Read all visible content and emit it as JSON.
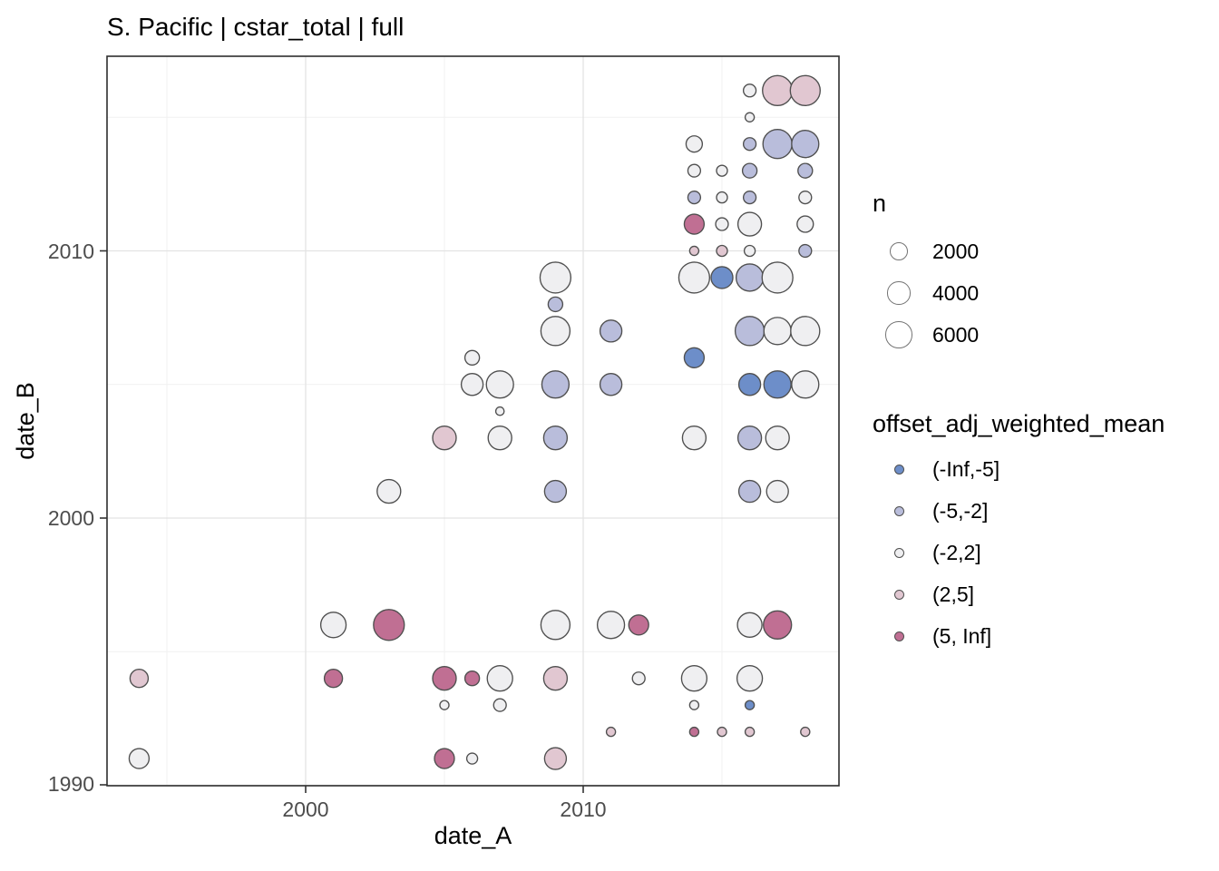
{
  "title": "S. Pacific | cstar_total | full",
  "axes": {
    "x_title": "date_A",
    "y_title": "date_B",
    "x_ticks": [
      2000,
      2010
    ],
    "y_ticks": [
      1990,
      2000,
      2010
    ]
  },
  "size_legend": {
    "title": "n",
    "values": [
      2000,
      4000,
      6000
    ]
  },
  "color_legend": {
    "title": "offset_adj_weighted_mean",
    "entries": [
      {
        "label": "(-Inf,-5]",
        "color": "#6d8ec9"
      },
      {
        "label": "(-5,-2]",
        "color": "#b9bddb"
      },
      {
        "label": "(-2,2]",
        "color": "#efeff1"
      },
      {
        "label": "(2,5]",
        "color": "#e1c7d1"
      },
      {
        "label": "(5, Inf]",
        "color": "#c06f93"
      }
    ]
  },
  "style": {
    "point_stroke": "#4f4f4f",
    "legend_circle_stroke": "#737373",
    "grid_major": "#e3e3e3",
    "grid_minor": "#f1f1f1",
    "panel_border": "#2e2e2e",
    "tick_color": "#333333",
    "tick_label_color": "#4d4d4d"
  },
  "chart_data": {
    "type": "scatter",
    "subtype": "bubble",
    "title": "S. Pacific | cstar_total | full",
    "xlabel": "date_A",
    "ylabel": "date_B",
    "x_range": [
      1993,
      2019.2
    ],
    "y_range": [
      1990,
      2017.3
    ],
    "x_ticks": [
      2000,
      2010
    ],
    "y_ticks": [
      1990,
      2000,
      2010
    ],
    "grid": true,
    "legend_position": "right",
    "size_scale": {
      "name": "n",
      "breaks": [
        2000,
        4000,
        6000
      ]
    },
    "color_bins": [
      "(-Inf,-5]",
      "(-5,-2]",
      "(-2,2]",
      "(2,5]",
      "(5, Inf]"
    ],
    "point_format": [
      "date_A",
      "date_B",
      "n_approx",
      "color_bin_index"
    ],
    "points": [
      [
        2016,
        2016,
        550,
        2
      ],
      [
        2017,
        2016,
        8100,
        3
      ],
      [
        2018,
        2016,
        8100,
        3
      ],
      [
        2016,
        2015,
        100,
        2
      ],
      [
        2014,
        2014,
        1400,
        2
      ],
      [
        2016,
        2014,
        550,
        1
      ],
      [
        2017,
        2014,
        7500,
        1
      ],
      [
        2018,
        2014,
        6300,
        1
      ],
      [
        2014,
        2013,
        550,
        2
      ],
      [
        2015,
        2013,
        280,
        2
      ],
      [
        2016,
        2013,
        950,
        1
      ],
      [
        2018,
        2013,
        950,
        1
      ],
      [
        2014,
        2012,
        550,
        1
      ],
      [
        2015,
        2012,
        280,
        2
      ],
      [
        2016,
        2012,
        550,
        1
      ],
      [
        2018,
        2012,
        550,
        2
      ],
      [
        2014,
        2011,
        2650,
        4
      ],
      [
        2015,
        2011,
        550,
        2
      ],
      [
        2016,
        2011,
        4300,
        2
      ],
      [
        2018,
        2011,
        1400,
        2
      ],
      [
        2014,
        2010,
        100,
        3
      ],
      [
        2015,
        2010,
        280,
        3
      ],
      [
        2016,
        2010,
        280,
        2
      ],
      [
        2018,
        2010,
        550,
        1
      ],
      [
        2009,
        2009,
        8700,
        2
      ],
      [
        2014,
        2009,
        8700,
        2
      ],
      [
        2015,
        2009,
        3450,
        0
      ],
      [
        2016,
        2009,
        6300,
        1
      ],
      [
        2017,
        2009,
        8700,
        2
      ],
      [
        2009,
        2008,
        950,
        1
      ],
      [
        2009,
        2007,
        7500,
        2
      ],
      [
        2011,
        2007,
        3450,
        1
      ],
      [
        2016,
        2007,
        7500,
        1
      ],
      [
        2017,
        2007,
        6300,
        2
      ],
      [
        2018,
        2007,
        7500,
        2
      ],
      [
        2006,
        2006,
        950,
        2
      ],
      [
        2014,
        2006,
        2650,
        0
      ],
      [
        2006,
        2005,
        3450,
        2
      ],
      [
        2007,
        2005,
        6300,
        2
      ],
      [
        2009,
        2005,
        6300,
        1
      ],
      [
        2011,
        2005,
        3450,
        1
      ],
      [
        2016,
        2005,
        3450,
        0
      ],
      [
        2017,
        2005,
        6300,
        0
      ],
      [
        2018,
        2005,
        6300,
        2
      ],
      [
        2007,
        2004,
        50,
        2
      ],
      [
        2005,
        2003,
        4300,
        3
      ],
      [
        2007,
        2003,
        4300,
        2
      ],
      [
        2009,
        2003,
        4300,
        1
      ],
      [
        2014,
        2003,
        4300,
        2
      ],
      [
        2016,
        2003,
        4300,
        1
      ],
      [
        2017,
        2003,
        4300,
        2
      ],
      [
        2003,
        2001,
        4300,
        2
      ],
      [
        2009,
        2001,
        3450,
        1
      ],
      [
        2016,
        2001,
        3450,
        1
      ],
      [
        2017,
        2001,
        3450,
        2
      ],
      [
        2001,
        1996,
        5250,
        2
      ],
      [
        2003,
        1996,
        8700,
        4
      ],
      [
        2009,
        1996,
        7500,
        2
      ],
      [
        2011,
        1996,
        6300,
        2
      ],
      [
        2012,
        1996,
        2650,
        4
      ],
      [
        2016,
        1996,
        4800,
        2
      ],
      [
        2017,
        1996,
        6900,
        4
      ],
      [
        1994,
        1994,
        2000,
        3
      ],
      [
        2001,
        1994,
        2000,
        4
      ],
      [
        2005,
        1994,
        4300,
        4
      ],
      [
        2006,
        1994,
        950,
        4
      ],
      [
        2007,
        1994,
        5250,
        2
      ],
      [
        2009,
        1994,
        4300,
        3
      ],
      [
        2012,
        1994,
        550,
        2
      ],
      [
        2014,
        1994,
        5250,
        2
      ],
      [
        2016,
        1994,
        5250,
        2
      ],
      [
        2005,
        1993,
        100,
        2
      ],
      [
        2007,
        1993,
        550,
        2
      ],
      [
        2014,
        1993,
        100,
        2
      ],
      [
        2016,
        1993,
        100,
        0
      ],
      [
        2011,
        1992,
        100,
        3
      ],
      [
        2014,
        1992,
        100,
        4
      ],
      [
        2015,
        1992,
        100,
        3
      ],
      [
        2016,
        1992,
        100,
        3
      ],
      [
        2018,
        1992,
        100,
        3
      ],
      [
        1994,
        1991,
        2650,
        2
      ],
      [
        2005,
        1991,
        2650,
        4
      ],
      [
        2006,
        1991,
        280,
        2
      ],
      [
        2009,
        1991,
        3450,
        3
      ]
    ]
  }
}
